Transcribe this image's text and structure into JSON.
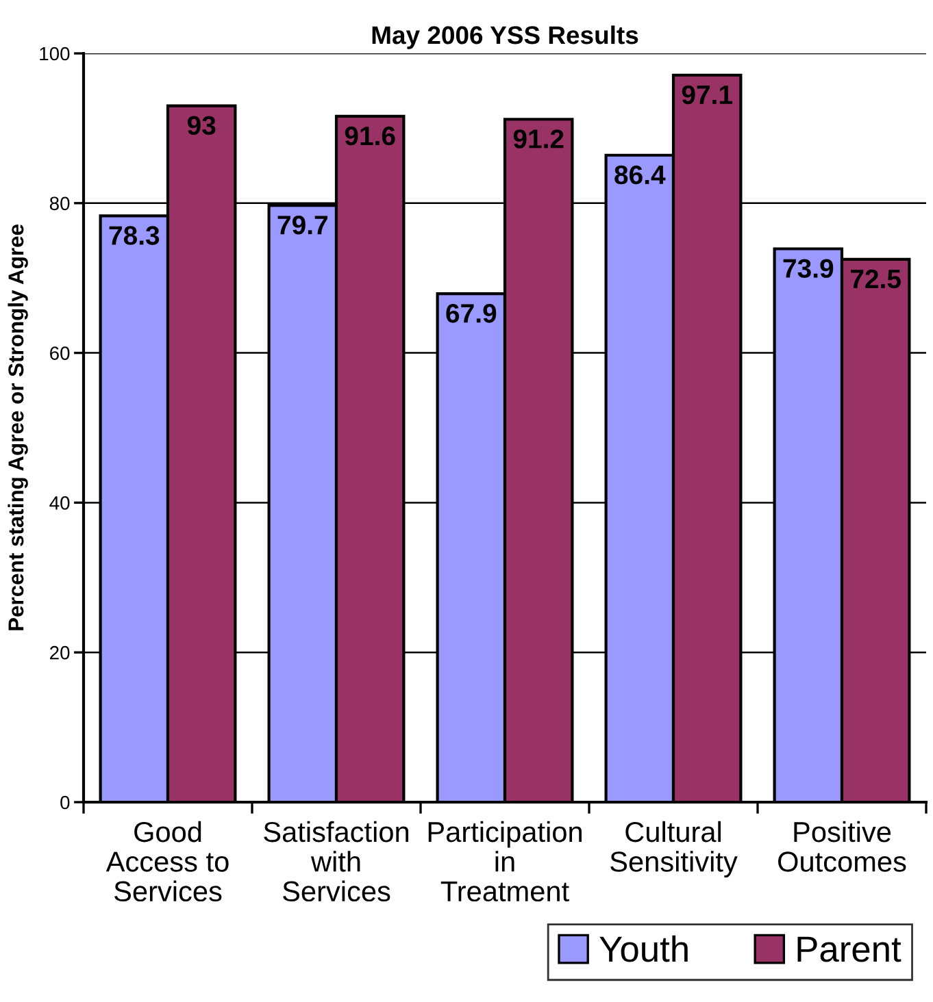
{
  "chart_data": {
    "type": "bar",
    "title": "May 2006 YSS Results",
    "ylabel": "Percent stating Agree or Strongly Agree",
    "categories": [
      "Good\nAccess to\nServices",
      "Satisfaction\nwith\nServices",
      "Participation\nin\nTreatment",
      "Cultural\nSensitivity",
      "Positive\nOutcomes"
    ],
    "series": [
      {
        "name": "Youth",
        "color": "#9999ff",
        "values": [
          78.3,
          79.7,
          67.9,
          86.4,
          73.9
        ]
      },
      {
        "name": "Parent",
        "color": "#993366",
        "values": [
          93,
          91.6,
          91.2,
          97.1,
          72.5
        ]
      }
    ],
    "ylim": [
      0,
      100
    ],
    "yticks": [
      0,
      20,
      40,
      60,
      80,
      100
    ],
    "grid": "y",
    "legend": "bottom right",
    "data_labels": true
  }
}
